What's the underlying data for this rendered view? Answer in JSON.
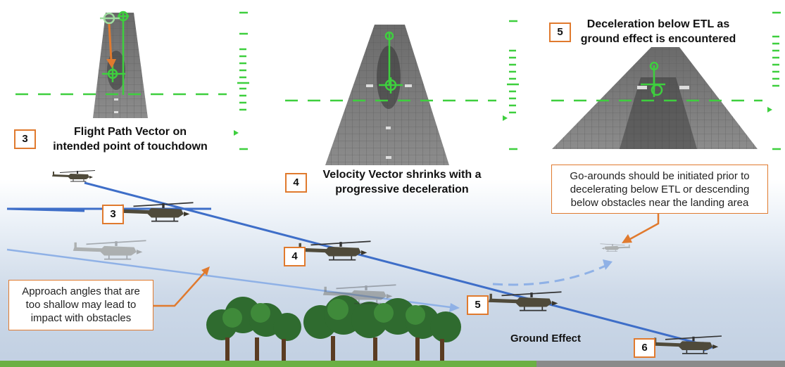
{
  "panels": [
    {
      "step": "3",
      "line1": "Flight Path Vector on",
      "line2": "intended point of touchdown"
    },
    {
      "step": "4",
      "line1": "Velocity Vector shrinks with a",
      "line2": "progressive deceleration"
    },
    {
      "step": "5",
      "line1": "Deceleration below ETL as",
      "line2": "ground effect is encountered"
    }
  ],
  "callouts": {
    "go_around": [
      "Go-arounds should be initiated prior to",
      "decelerating below ETL or descending",
      "below obstacles near the landing area"
    ],
    "shallow": [
      "Approach angles that are",
      "too shallow may lead to",
      "impact with obstacles"
    ]
  },
  "steps": {
    "s3": "3",
    "s4": "4",
    "s5": "5",
    "s6": "6"
  },
  "labels": {
    "ground_effect": "Ground Effect"
  },
  "colors": {
    "hud_green": "#3ecf3e",
    "accent_orange": "#e07a2e",
    "path_blue": "#3e6ec8",
    "path_light_blue": "#8fb1e6"
  }
}
